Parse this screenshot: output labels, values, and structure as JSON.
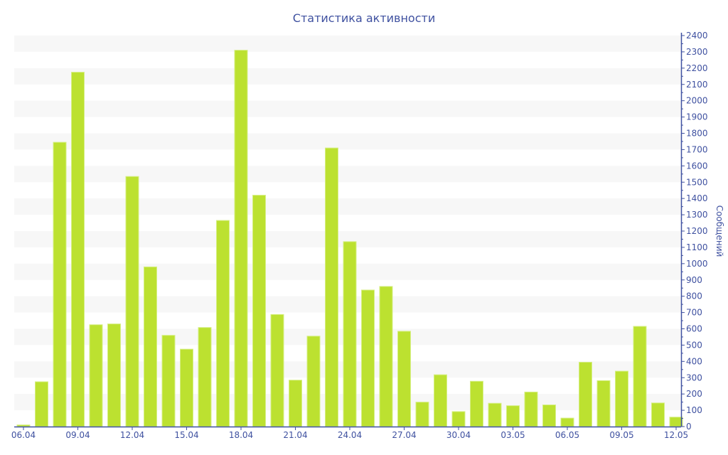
{
  "chart_data": {
    "type": "bar",
    "title": "Статистика активности",
    "xlabel": "",
    "ylabel": "Сообщений",
    "ylim": [
      0,
      2400
    ],
    "ytick_step": 100,
    "grid": "alternating horizontal bands",
    "bar_color": "#bce130",
    "axis_color": "#3f51a0",
    "categories": [
      "06.04",
      "07.04",
      "08.04",
      "09.04",
      "10.04",
      "11.04",
      "12.04",
      "13.04",
      "14.04",
      "15.04",
      "16.04",
      "17.04",
      "18.04",
      "19.04",
      "20.04",
      "21.04",
      "22.04",
      "23.04",
      "24.04",
      "25.04",
      "26.04",
      "27.04",
      "28.04",
      "29.04",
      "30.04",
      "01.05",
      "02.05",
      "03.05",
      "04.05",
      "05.05",
      "06.05",
      "07.05",
      "08.05",
      "09.05",
      "10.05",
      "11.05",
      "12.05"
    ],
    "x_tick_labels": [
      "06.04",
      "09.04",
      "12.04",
      "15.04",
      "18.04",
      "21.04",
      "24.04",
      "27.04",
      "30.04",
      "03.05",
      "06.05",
      "09.05",
      "12.05"
    ],
    "values": [
      10,
      275,
      1745,
      2175,
      625,
      630,
      1535,
      980,
      560,
      475,
      608,
      1265,
      2310,
      1420,
      688,
      285,
      555,
      1710,
      1135,
      838,
      860,
      585,
      150,
      318,
      92,
      278,
      143,
      128,
      212,
      133,
      52,
      395,
      282,
      340,
      615,
      145,
      58
    ]
  }
}
